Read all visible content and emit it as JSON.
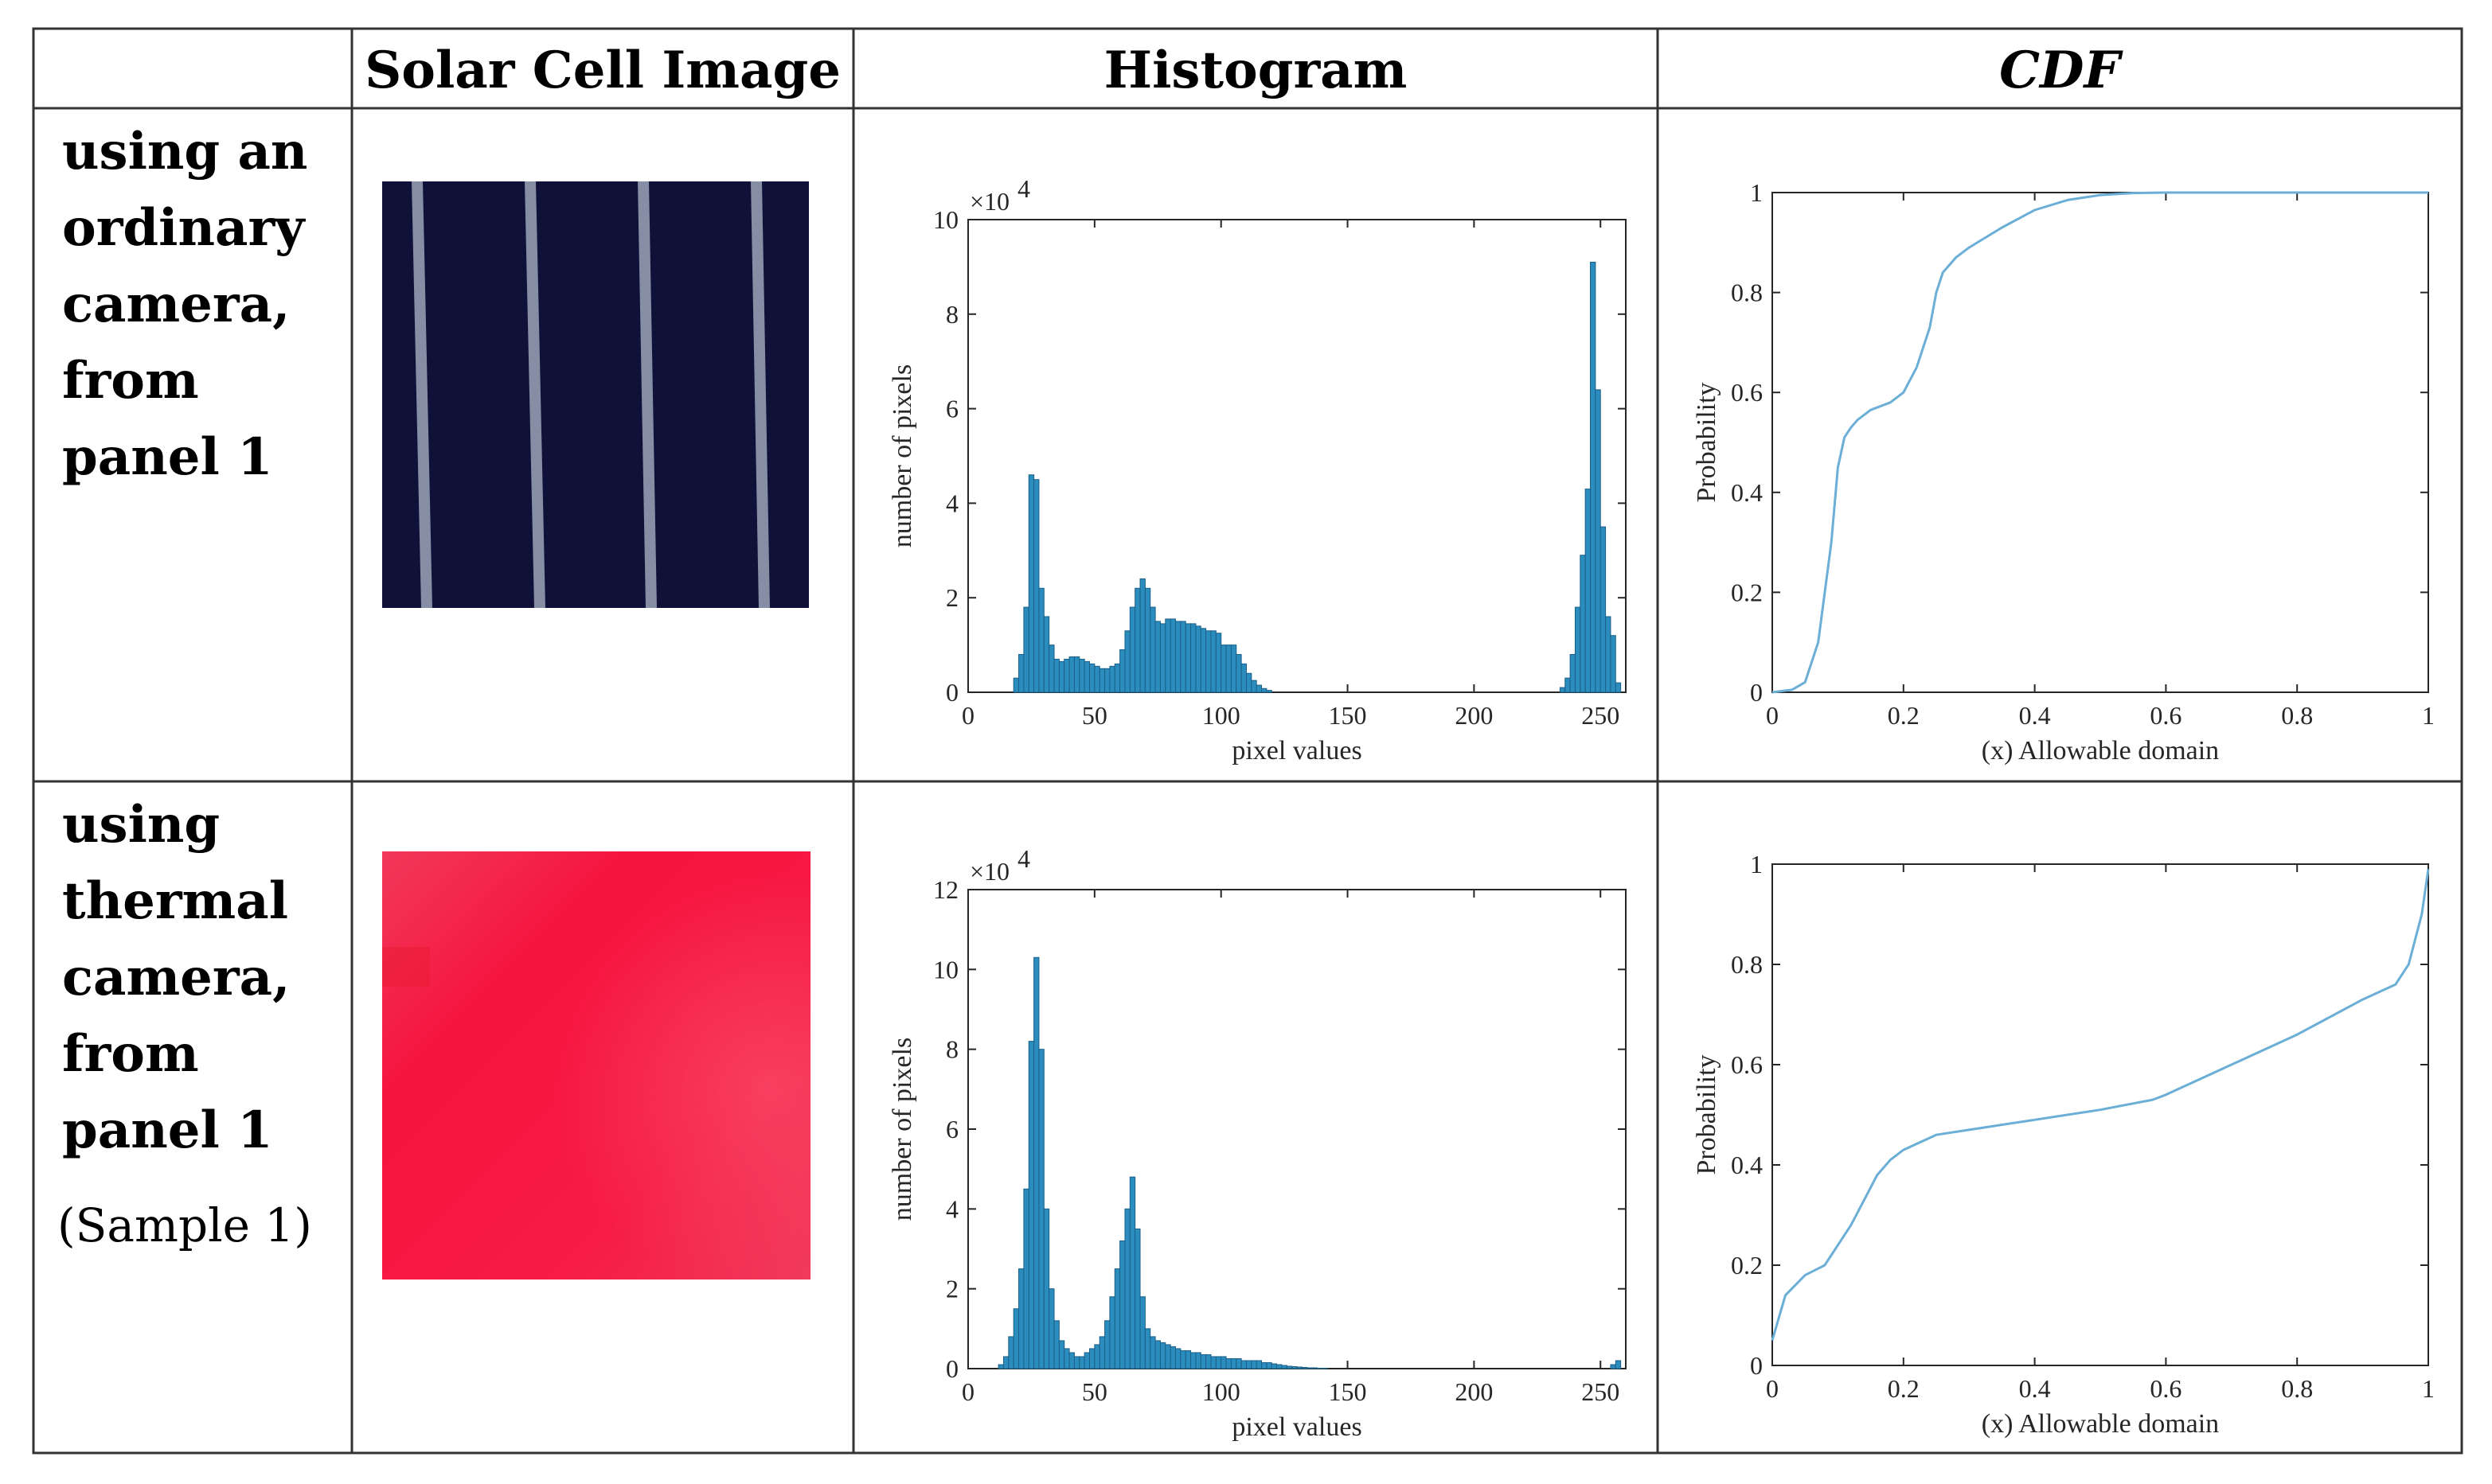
{
  "headers": [
    "",
    "Solar Cell Image",
    "Histogram",
    "CDF"
  ],
  "rows": [
    {
      "label_lines": [
        "using an",
        "ordinary",
        "camera,",
        "from",
        "panel 1"
      ],
      "sublabel": "",
      "image": {
        "kind": "ordinary-camera-photo",
        "base_color": "#0f1138",
        "stripe_color": "#9aa4b8"
      },
      "histogram": {
        "xlabel": "pixel values",
        "ylabel": "number of pixels",
        "exponent_label": "×10",
        "exponent_power": "4",
        "xlim": [
          0,
          260
        ],
        "ylim": [
          0,
          10
        ],
        "xticks": [
          0,
          50,
          100,
          150,
          200,
          250
        ],
        "yticks": [
          0,
          2,
          4,
          6,
          8,
          10
        ],
        "bar_color": "#2b8cbe"
      },
      "cdf": {
        "xlabel": "(x) Allowable domain",
        "ylabel": "Probability",
        "xlim": [
          0,
          1
        ],
        "ylim": [
          0,
          1
        ],
        "xticks": [
          "0",
          "0.2",
          "0.4",
          "0.6",
          "0.8",
          "1"
        ],
        "yticks": [
          "0",
          "0.2",
          "0.4",
          "0.6",
          "0.8",
          "1"
        ],
        "line_color": "#6baed6"
      }
    },
    {
      "label_lines": [
        "using",
        "thermal",
        "camera,",
        "from",
        "panel 1"
      ],
      "sublabel": "(Sample 1)",
      "image": {
        "kind": "thermal-camera-photo",
        "base_color": "#f5143e"
      },
      "histogram": {
        "xlabel": "pixel values",
        "ylabel": "number of pixels",
        "exponent_label": "×10",
        "exponent_power": "4",
        "xlim": [
          0,
          260
        ],
        "ylim": [
          0,
          12
        ],
        "xticks": [
          0,
          50,
          100,
          150,
          200,
          250
        ],
        "yticks": [
          0,
          2,
          4,
          6,
          8,
          10,
          12
        ],
        "bar_color": "#2b8cbe"
      },
      "cdf": {
        "xlabel": "(x) Allowable domain",
        "ylabel": "Probability",
        "xlim": [
          0,
          1
        ],
        "ylim": [
          0,
          1
        ],
        "xticks": [
          "0",
          "0.2",
          "0.4",
          "0.6",
          "0.8",
          "1"
        ],
        "yticks": [
          "0",
          "0.2",
          "0.4",
          "0.6",
          "0.8",
          "1"
        ],
        "line_color": "#6baed6"
      }
    }
  ],
  "chart_data": [
    {
      "type": "bar",
      "x": [
        18,
        20,
        22,
        24,
        26,
        28,
        30,
        32,
        34,
        36,
        38,
        40,
        42,
        44,
        46,
        48,
        50,
        52,
        54,
        56,
        58,
        60,
        62,
        64,
        66,
        68,
        70,
        72,
        74,
        76,
        78,
        80,
        82,
        84,
        86,
        88,
        90,
        92,
        94,
        96,
        98,
        100,
        102,
        104,
        106,
        108,
        110,
        112,
        114,
        116,
        118,
        234,
        236,
        238,
        240,
        242,
        244,
        246,
        248,
        250,
        252,
        254,
        256
      ],
      "values": [
        0.3,
        0.8,
        1.8,
        4.6,
        4.5,
        2.2,
        1.6,
        1.0,
        0.7,
        0.65,
        0.7,
        0.75,
        0.75,
        0.7,
        0.65,
        0.6,
        0.55,
        0.5,
        0.5,
        0.55,
        0.6,
        0.9,
        1.3,
        1.8,
        2.2,
        2.4,
        2.2,
        1.8,
        1.5,
        1.45,
        1.55,
        1.55,
        1.5,
        1.5,
        1.45,
        1.45,
        1.4,
        1.35,
        1.3,
        1.3,
        1.25,
        1.0,
        1.0,
        1.0,
        0.8,
        0.6,
        0.4,
        0.25,
        0.15,
        0.08,
        0.04,
        0.1,
        0.3,
        0.8,
        1.8,
        2.9,
        4.3,
        9.1,
        6.4,
        3.5,
        1.6,
        1.2,
        0.2
      ]
    },
    {
      "type": "line",
      "x": [
        0,
        0.03,
        0.05,
        0.07,
        0.09,
        0.1,
        0.11,
        0.12,
        0.13,
        0.15,
        0.18,
        0.2,
        0.22,
        0.24,
        0.25,
        0.26,
        0.28,
        0.3,
        0.35,
        0.4,
        0.45,
        0.5,
        0.55,
        0.6,
        0.8,
        1.0
      ],
      "y": [
        0,
        0.005,
        0.02,
        0.1,
        0.3,
        0.45,
        0.51,
        0.53,
        0.545,
        0.565,
        0.58,
        0.6,
        0.65,
        0.73,
        0.8,
        0.84,
        0.87,
        0.89,
        0.93,
        0.965,
        0.985,
        0.995,
        0.999,
        1.0,
        1.0,
        1.0
      ]
    },
    {
      "type": "bar",
      "x": [
        12,
        14,
        16,
        18,
        20,
        22,
        24,
        26,
        28,
        30,
        32,
        34,
        36,
        38,
        40,
        42,
        44,
        46,
        48,
        50,
        52,
        54,
        56,
        58,
        60,
        62,
        64,
        66,
        68,
        70,
        72,
        74,
        76,
        78,
        80,
        82,
        84,
        86,
        88,
        90,
        92,
        94,
        96,
        98,
        100,
        102,
        104,
        106,
        108,
        110,
        112,
        114,
        116,
        118,
        120,
        122,
        124,
        126,
        128,
        130,
        132,
        134,
        136,
        138,
        140,
        254,
        256
      ],
      "values": [
        0.1,
        0.3,
        0.8,
        1.5,
        2.5,
        4.5,
        8.2,
        10.3,
        8.0,
        4.0,
        2.0,
        1.2,
        0.7,
        0.5,
        0.4,
        0.3,
        0.3,
        0.4,
        0.5,
        0.6,
        0.8,
        1.2,
        1.8,
        2.5,
        3.2,
        4.0,
        4.8,
        3.5,
        1.8,
        1.0,
        0.8,
        0.7,
        0.65,
        0.6,
        0.55,
        0.5,
        0.45,
        0.45,
        0.4,
        0.4,
        0.35,
        0.35,
        0.3,
        0.3,
        0.3,
        0.25,
        0.25,
        0.25,
        0.2,
        0.2,
        0.2,
        0.2,
        0.15,
        0.15,
        0.12,
        0.1,
        0.08,
        0.06,
        0.05,
        0.04,
        0.03,
        0.02,
        0.02,
        0.01,
        0.01,
        0.1,
        0.2
      ]
    },
    {
      "type": "line",
      "x": [
        0,
        0.02,
        0.05,
        0.08,
        0.1,
        0.12,
        0.14,
        0.16,
        0.18,
        0.2,
        0.25,
        0.3,
        0.4,
        0.5,
        0.58,
        0.6,
        0.7,
        0.8,
        0.9,
        0.95,
        0.97,
        0.99,
        1.0
      ],
      "y": [
        0.05,
        0.14,
        0.18,
        0.2,
        0.24,
        0.28,
        0.33,
        0.38,
        0.41,
        0.43,
        0.46,
        0.47,
        0.49,
        0.51,
        0.53,
        0.54,
        0.6,
        0.66,
        0.73,
        0.76,
        0.8,
        0.9,
        0.99
      ]
    }
  ]
}
